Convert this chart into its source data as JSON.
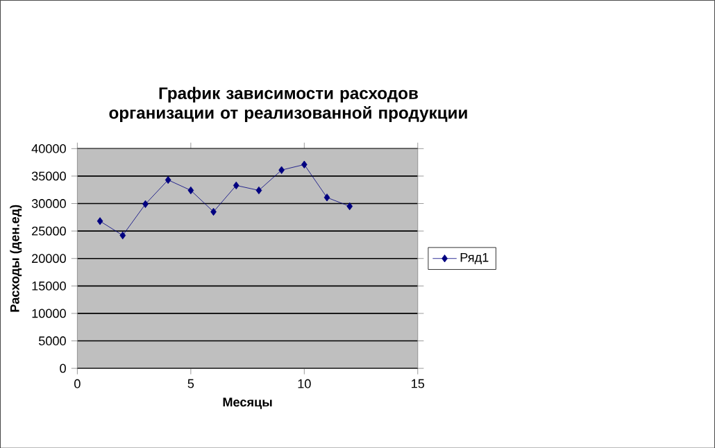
{
  "chart_data": {
    "type": "line",
    "title": "График зависимости расходов организации от реализованной продукции",
    "xlabel": "Месяцы",
    "ylabel": "Расходы (ден.ед)",
    "x": [
      1,
      2,
      3,
      4,
      5,
      6,
      7,
      8,
      9,
      10,
      11,
      12
    ],
    "series": [
      {
        "name": "Ряд1",
        "color": "#000080",
        "values": [
          26800,
          24200,
          29900,
          34300,
          32400,
          28500,
          33300,
          32400,
          36100,
          37100,
          31100,
          29500
        ]
      }
    ],
    "xlim": [
      0,
      15
    ],
    "xticks": [
      0,
      5,
      10,
      15
    ],
    "ylim": [
      0,
      40000
    ],
    "yticks": [
      0,
      5000,
      10000,
      15000,
      20000,
      25000,
      30000,
      35000,
      40000
    ],
    "grid": "y",
    "legend": "right",
    "marker": "diamond",
    "line_style": "solid"
  }
}
